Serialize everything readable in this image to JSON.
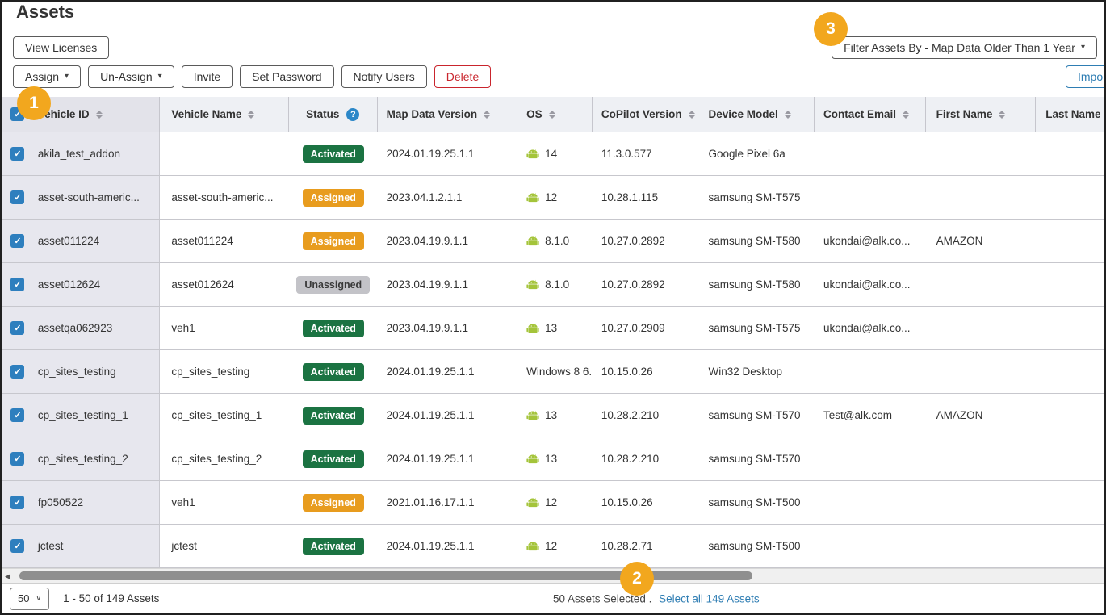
{
  "page": {
    "title": "Assets"
  },
  "toolbar": {
    "view_licenses_label": "View Licenses",
    "assign_label": "Assign",
    "un_assign_label": "Un-Assign",
    "invite_label": "Invite",
    "set_password_label": "Set Password",
    "notify_users_label": "Notify Users",
    "delete_label": "Delete",
    "filter_label": "Filter Assets By - Map Data Older Than 1 Year",
    "import_label": "Import"
  },
  "icons": {
    "check": "✓",
    "caret_down": "▾",
    "scroll_left": "◀",
    "select_chevron": "∨",
    "help": "?"
  },
  "callouts": {
    "one": "1",
    "two": "2",
    "three": "3"
  },
  "table": {
    "header_checkbox_checked": true,
    "columns": [
      {
        "label": "Vehicle ID",
        "sortable": true
      },
      {
        "label": "Vehicle Name",
        "sortable": true
      },
      {
        "label": "Status",
        "sortable": false,
        "help": true
      },
      {
        "label": "Map Data Version",
        "sortable": true
      },
      {
        "label": "OS",
        "sortable": true
      },
      {
        "label": "CoPilot Version",
        "sortable": true
      },
      {
        "label": "Device Model",
        "sortable": true
      },
      {
        "label": "Contact Email",
        "sortable": true
      },
      {
        "label": "First Name",
        "sortable": true
      },
      {
        "label": "Last Name",
        "sortable": true
      }
    ],
    "rows": [
      {
        "selected": true,
        "vehicle_id": "akila_test_addon",
        "vehicle_name": "",
        "status": "Activated",
        "map_data_version": "2024.01.19.25.1.1",
        "os_icon": "android-icon",
        "os": "14",
        "copilot_version": "11.3.0.577",
        "device_model": "Google Pixel 6a",
        "contact_email": "",
        "first_name": "",
        "last_name": ""
      },
      {
        "selected": true,
        "vehicle_id": "asset-south-americ...",
        "vehicle_name": "asset-south-americ...",
        "status": "Assigned",
        "map_data_version": "2023.04.1.2.1.1",
        "os_icon": "android-icon",
        "os": "12",
        "copilot_version": "10.28.1.115",
        "device_model": "samsung SM-T575",
        "contact_email": "",
        "first_name": "",
        "last_name": ""
      },
      {
        "selected": true,
        "vehicle_id": "asset011224",
        "vehicle_name": "asset011224",
        "status": "Assigned",
        "map_data_version": "2023.04.19.9.1.1",
        "os_icon": "android-icon",
        "os": "8.1.0",
        "copilot_version": "10.27.0.2892",
        "device_model": "samsung SM-T580",
        "contact_email": "ukondai@alk.co...",
        "first_name": "AMAZON",
        "last_name": ""
      },
      {
        "selected": true,
        "vehicle_id": "asset012624",
        "vehicle_name": "asset012624",
        "status": "Unassigned",
        "map_data_version": "2023.04.19.9.1.1",
        "os_icon": "android-icon",
        "os": "8.1.0",
        "copilot_version": "10.27.0.2892",
        "device_model": "samsung SM-T580",
        "contact_email": "ukondai@alk.co...",
        "first_name": "",
        "last_name": ""
      },
      {
        "selected": true,
        "vehicle_id": "assetqa062923",
        "vehicle_name": "veh1",
        "status": "Activated",
        "map_data_version": "2023.04.19.9.1.1",
        "os_icon": "android-icon",
        "os": "13",
        "copilot_version": "10.27.0.2909",
        "device_model": "samsung SM-T575",
        "contact_email": "ukondai@alk.co...",
        "first_name": "",
        "last_name": ""
      },
      {
        "selected": true,
        "vehicle_id": "cp_sites_testing",
        "vehicle_name": "cp_sites_testing",
        "status": "Activated",
        "map_data_version": "2024.01.19.25.1.1",
        "os_icon": null,
        "os": "Windows 8 6.",
        "copilot_version": "10.15.0.26",
        "device_model": "Win32 Desktop",
        "contact_email": "",
        "first_name": "",
        "last_name": ""
      },
      {
        "selected": true,
        "vehicle_id": "cp_sites_testing_1",
        "vehicle_name": "cp_sites_testing_1",
        "status": "Activated",
        "map_data_version": "2024.01.19.25.1.1",
        "os_icon": "android-icon",
        "os": "13",
        "copilot_version": "10.28.2.210",
        "device_model": "samsung SM-T570",
        "contact_email": "Test@alk.com",
        "first_name": "AMAZON",
        "last_name": ""
      },
      {
        "selected": true,
        "vehicle_id": "cp_sites_testing_2",
        "vehicle_name": "cp_sites_testing_2",
        "status": "Activated",
        "map_data_version": "2024.01.19.25.1.1",
        "os_icon": "android-icon",
        "os": "13",
        "copilot_version": "10.28.2.210",
        "device_model": "samsung SM-T570",
        "contact_email": "",
        "first_name": "",
        "last_name": ""
      },
      {
        "selected": true,
        "vehicle_id": "fp050522",
        "vehicle_name": "veh1",
        "status": "Assigned",
        "map_data_version": "2021.01.16.17.1.1",
        "os_icon": "android-icon",
        "os": "12",
        "copilot_version": "10.15.0.26",
        "device_model": "samsung SM-T500",
        "contact_email": "",
        "first_name": "",
        "last_name": ""
      },
      {
        "selected": true,
        "vehicle_id": "jctest",
        "vehicle_name": "jctest",
        "status": "Activated",
        "map_data_version": "2024.01.19.25.1.1",
        "os_icon": "android-icon",
        "os": "12",
        "copilot_version": "10.28.2.71",
        "device_model": "samsung SM-T500",
        "contact_email": "",
        "first_name": "",
        "last_name": ""
      }
    ]
  },
  "footer": {
    "page_size": "50",
    "range_text": "1 - 50 of 149 Assets",
    "selected_text": "50 Assets Selected .",
    "select_all_label": "Select all 149 Assets"
  },
  "colors": {
    "status_activated": "#1b7342",
    "status_assigned": "#e89c1e",
    "status_unassigned": "#c3c3c8",
    "callout_orange": "#f2a71e",
    "link_blue": "#2e7db3",
    "checkbox_blue": "#2e7fbe",
    "delete_red": "#c9252d",
    "android_green": "#a4c43a"
  }
}
